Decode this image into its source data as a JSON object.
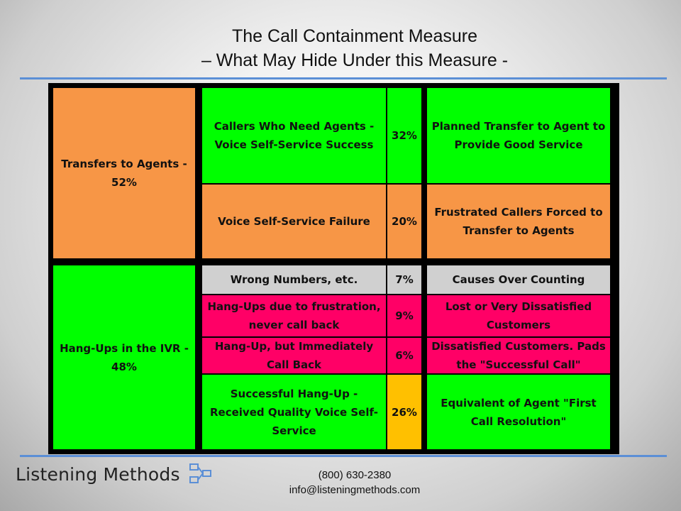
{
  "slide": {
    "title_line1": "The Call Containment Measure",
    "title_line2": "– What May Hide Under this Measure -"
  },
  "table": {
    "left": [
      {
        "label": "Transfers to Agents - 52%",
        "color": "#f79646"
      },
      {
        "label": "Hang-Ups in the IVR - 48%",
        "color": "#00ff00"
      }
    ],
    "rows": [
      {
        "category": "Callers Who Need Agents - Voice Self-Service Success",
        "percent": "32%",
        "meaning": "Planned Transfer to Agent to Provide Good Service",
        "color": "#00ff00"
      },
      {
        "category": "Voice Self-Service Failure",
        "percent": "20%",
        "meaning": "Frustrated Callers Forced to Transfer to Agents",
        "color": "#f79646"
      },
      {
        "category": "Wrong Numbers, etc.",
        "percent": "7%",
        "meaning": "Causes Over Counting",
        "color": "#d0d0d0"
      },
      {
        "category": "Hang-Ups due to frustration, never call back",
        "percent": "9%",
        "meaning": "Lost or Very Dissatisfied Customers",
        "color": "#ff0066"
      },
      {
        "category": "Hang-Up, but Immediately Call Back",
        "percent": "6%",
        "meaning": "Dissatisfied Customers. Pads the \"Successful Call\"",
        "color": "#ff0066"
      },
      {
        "category": "Successful Hang-Up - Received Quality Voice Self-Service",
        "percent": "26%",
        "meaning": "Equivalent of Agent \"First Call Resolution\"",
        "color": "#00ff00",
        "percent_color": "#ffc000"
      }
    ]
  },
  "footer": {
    "logo_text": "Listening Methods",
    "logo_icon": "network-icon",
    "phone": "(800) 630-2380",
    "email": "info@listeningmethods.com"
  }
}
